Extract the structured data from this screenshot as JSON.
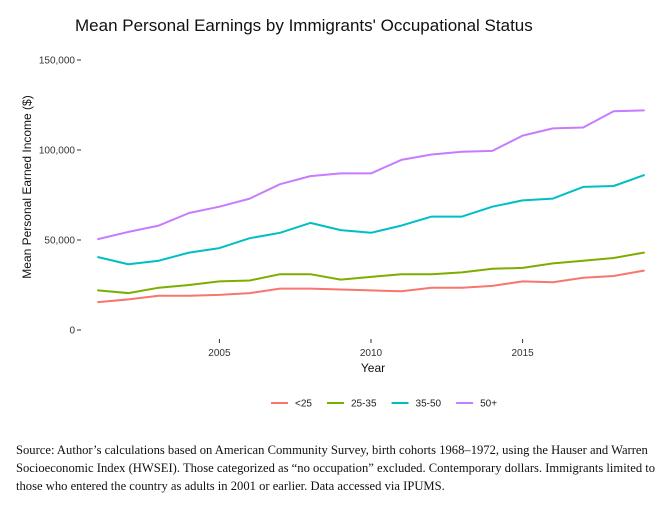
{
  "chart_data": {
    "type": "line",
    "title": "Mean Personal Earnings by Immigrants' Occupational Status",
    "xlabel": "Year",
    "ylabel": "Mean Personal Earned Income ($)",
    "xlim": [
      2000.6,
      2019.4
    ],
    "ylim": [
      0,
      150000
    ],
    "x_ticks": [
      2005,
      2010,
      2015
    ],
    "y_ticks": [
      0,
      50000,
      100000,
      150000
    ],
    "y_tick_labels": [
      "0",
      "50,000",
      "100,000",
      "150,000"
    ],
    "grid": false,
    "legend_position": "bottom",
    "x": [
      2001,
      2002,
      2003,
      2004,
      2005,
      2006,
      2007,
      2008,
      2009,
      2010,
      2011,
      2012,
      2013,
      2014,
      2015,
      2016,
      2017,
      2018,
      2019
    ],
    "series": [
      {
        "name": "<25",
        "color": "#F8766D",
        "values": [
          15500,
          17000,
          19000,
          19000,
          19500,
          20500,
          23000,
          23000,
          22500,
          22000,
          21500,
          23500,
          23500,
          24500,
          27000,
          26500,
          29000,
          30000,
          33000
        ]
      },
      {
        "name": "25-35",
        "color": "#7CAE00",
        "values": [
          22000,
          20500,
          23500,
          25000,
          27000,
          27500,
          31000,
          31000,
          28000,
          29500,
          31000,
          31000,
          32000,
          34000,
          34500,
          37000,
          38500,
          40000,
          43000
        ]
      },
      {
        "name": "35-50",
        "color": "#00BFC4",
        "values": [
          40500,
          36500,
          38500,
          43000,
          45500,
          51000,
          54000,
          59500,
          55500,
          54000,
          58000,
          63000,
          63000,
          68500,
          72000,
          73000,
          79500,
          80000,
          86000
        ]
      },
      {
        "name": "50+",
        "color": "#C77CFF",
        "values": [
          50500,
          54500,
          58000,
          65000,
          68500,
          73000,
          81000,
          85500,
          87000,
          87000,
          94500,
          97500,
          99000,
          99500,
          108000,
          112000,
          112500,
          121500,
          122000
        ]
      }
    ]
  },
  "caption": "Source: Author’s calculations based on American Community Survey, birth cohorts 1968–1972, using the Hauser and Warren Socioeconomic Index (HWSEI). Those categorized as “no occupation” excluded. Contemporary dollars. Immigrants limited to those who entered the country as adults in 2001 or earlier. Data accessed via IPUMS."
}
